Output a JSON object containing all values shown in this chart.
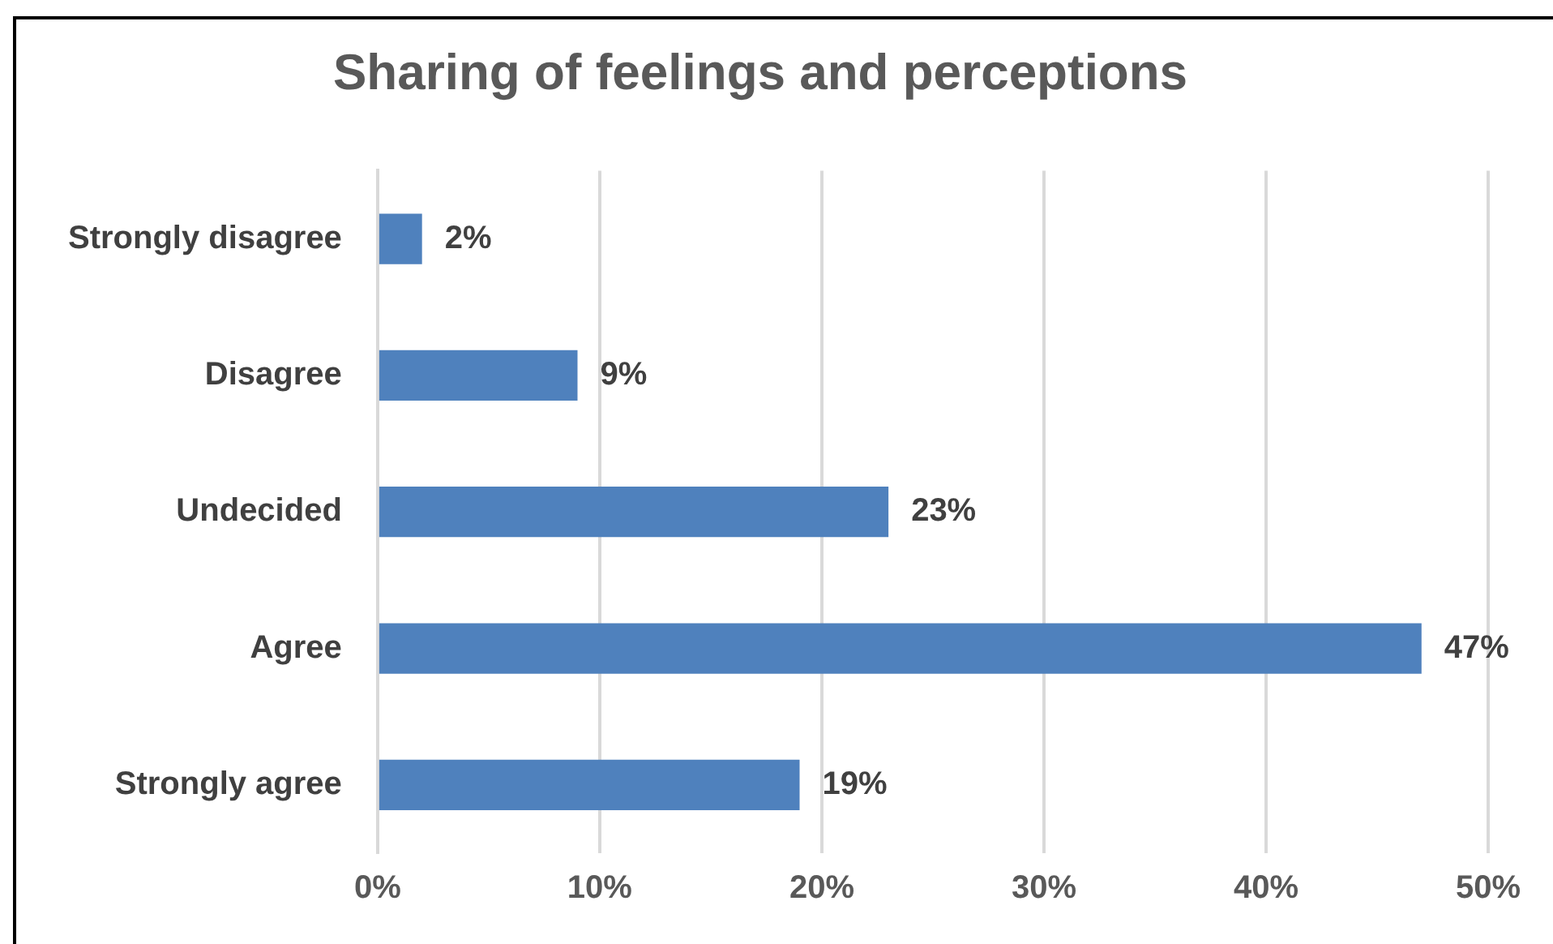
{
  "chart_data": {
    "type": "bar",
    "title": "Sharing of feelings and perceptions",
    "orientation": "horizontal",
    "categories": [
      "Strongly disagree",
      "Disagree",
      "Undecided",
      "Agree",
      "Strongly agree"
    ],
    "values": [
      2,
      9,
      23,
      47,
      19
    ],
    "value_labels": [
      "2%",
      "9%",
      "23%",
      "47%",
      "19%"
    ],
    "color": "#4f81bd",
    "xlim": [
      0,
      50
    ],
    "xticks": [
      {
        "value": 0,
        "label": "0%"
      },
      {
        "value": 10,
        "label": "10%"
      },
      {
        "value": 20,
        "label": "20%"
      },
      {
        "value": 30,
        "label": "30%"
      },
      {
        "value": 40,
        "label": "40%"
      },
      {
        "value": 50,
        "label": "50%"
      }
    ],
    "grid": "x",
    "legend": false
  }
}
